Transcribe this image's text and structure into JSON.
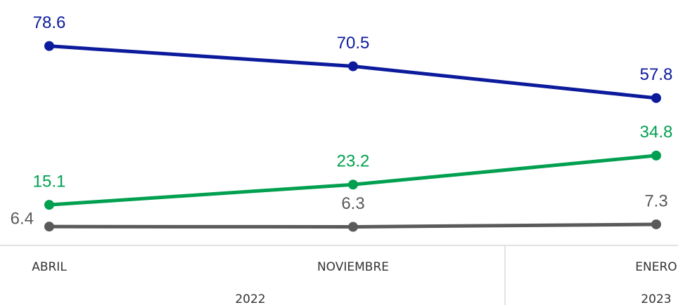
{
  "chart_data": {
    "type": "line",
    "categories": [
      "ABRIL",
      "NOVIEMBRE",
      "ENERO"
    ],
    "years": [
      "2022",
      "2023"
    ],
    "series": [
      {
        "color": "#0c1a9c",
        "values": [
          78.6,
          70.5,
          57.8
        ]
      },
      {
        "color": "#00a050",
        "values": [
          15.1,
          23.2,
          34.8
        ]
      },
      {
        "color": "#5a5a5a",
        "values": [
          6.4,
          6.3,
          7.3
        ]
      }
    ],
    "ylim": [
      0,
      97
    ]
  }
}
